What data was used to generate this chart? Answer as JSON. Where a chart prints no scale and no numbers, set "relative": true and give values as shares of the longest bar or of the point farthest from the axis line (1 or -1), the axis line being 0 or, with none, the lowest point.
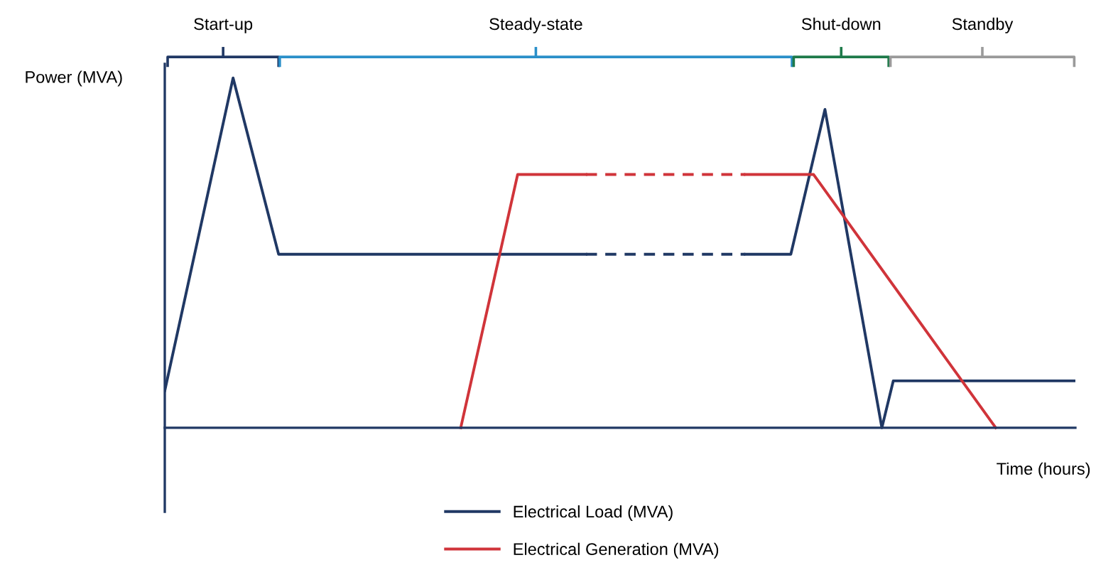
{
  "chart_data": {
    "type": "line",
    "relative": true,
    "xlabel": "Time (hours)",
    "ylabel": "Power (MVA)",
    "legend": "bottom",
    "marker": "none",
    "annotations": [
      "Start-up",
      "Steady-state",
      "Shut-down",
      "Standby"
    ],
    "categories": [
      null,
      null,
      null,
      null,
      null,
      null,
      null,
      null,
      null,
      null,
      null,
      null,
      null,
      null,
      null,
      null,
      null,
      null,
      null,
      null,
      null,
      null,
      null,
      null,
      null,
      null,
      null,
      null,
      null,
      null,
      null,
      null,
      null,
      null,
      null,
      null,
      null,
      null,
      null,
      null,
      null,
      null,
      null,
      null,
      null,
      null,
      null,
      null,
      null,
      null,
      null,
      null,
      null,
      null,
      null,
      null,
      null,
      null,
      null,
      null,
      null,
      null,
      null,
      null,
      null,
      null,
      null,
      null,
      null,
      null,
      null,
      null,
      null,
      null,
      null,
      null,
      null,
      null,
      null,
      null,
      null
    ],
    "series": [
      {
        "name": "Electrical Load (MVA)",
        "color": "#203864",
        "line_style": "solid",
        "values": [
          0.106,
          null,
          null,
          null,
          null,
          null,
          1,
          null,
          null,
          null,
          0.496,
          null,
          null,
          null,
          null,
          null,
          null,
          null,
          null,
          null,
          null,
          null,
          null,
          null,
          null,
          null,
          null,
          null,
          null,
          null,
          null,
          null,
          null,
          null,
          null,
          null,
          null,
          0.496,
          null,
          null,
          null,
          null,
          null,
          null,
          null,
          null,
          null,
          null,
          null,
          null,
          null,
          null,
          null,
          null,
          null,
          null,
          null,
          null,
          null,
          null,
          null,
          null,
          null,
          null,
          null,
          null,
          null,
          null,
          null,
          null,
          null,
          null,
          null,
          null,
          null,
          null,
          null,
          null,
          null,
          null,
          null
        ]
      },
      {
        "color": "#203864",
        "line_style": "dashed",
        "values": [
          null,
          null,
          null,
          null,
          null,
          null,
          null,
          null,
          null,
          null,
          null,
          null,
          null,
          null,
          null,
          null,
          null,
          null,
          null,
          null,
          null,
          null,
          null,
          null,
          null,
          null,
          null,
          null,
          null,
          null,
          null,
          null,
          null,
          null,
          null,
          null,
          null,
          0.496,
          null,
          null,
          null,
          null,
          null,
          null,
          null,
          null,
          null,
          null,
          null,
          null,
          null,
          0.496,
          null,
          null,
          null,
          null,
          null,
          null,
          null,
          null,
          null,
          null,
          null,
          null,
          null,
          null,
          null,
          null,
          null,
          null,
          null,
          null,
          null,
          null,
          null,
          null,
          null,
          null,
          null,
          null,
          null
        ]
      },
      {
        "color": "#203864",
        "line_style": "solid",
        "values": [
          null,
          null,
          null,
          null,
          null,
          null,
          null,
          null,
          null,
          null,
          null,
          null,
          null,
          null,
          null,
          null,
          null,
          null,
          null,
          null,
          null,
          null,
          null,
          null,
          null,
          null,
          null,
          null,
          null,
          null,
          null,
          null,
          null,
          null,
          null,
          null,
          null,
          null,
          null,
          null,
          null,
          null,
          null,
          null,
          null,
          null,
          null,
          null,
          null,
          null,
          null,
          0.496,
          null,
          null,
          null,
          0.496,
          null,
          null,
          0.91,
          null,
          null,
          null,
          null,
          0,
          0.134,
          null,
          null,
          null,
          null,
          null,
          null,
          null,
          null,
          null,
          null,
          null,
          null,
          null,
          null,
          null,
          0.134
        ]
      },
      {
        "name": "Electrical Generation (MVA)",
        "color": "#d0343a",
        "line_style": "solid",
        "values": [
          null,
          null,
          null,
          null,
          null,
          null,
          null,
          null,
          null,
          null,
          null,
          null,
          null,
          null,
          null,
          null,
          null,
          null,
          null,
          null,
          null,
          null,
          null,
          null,
          null,
          null,
          0,
          null,
          null,
          null,
          null,
          0.724,
          null,
          null,
          null,
          null,
          null,
          0.724,
          null,
          null,
          null,
          null,
          null,
          null,
          null,
          null,
          null,
          null,
          null,
          null,
          null,
          null,
          null,
          null,
          null,
          null,
          null,
          null,
          null,
          null,
          null,
          null,
          null,
          null,
          null,
          null,
          null,
          null,
          null,
          null,
          null,
          null,
          null,
          null,
          null,
          null,
          null,
          null,
          null,
          null,
          null
        ]
      },
      {
        "color": "#d0343a",
        "line_style": "dashed",
        "values": [
          null,
          null,
          null,
          null,
          null,
          null,
          null,
          null,
          null,
          null,
          null,
          null,
          null,
          null,
          null,
          null,
          null,
          null,
          null,
          null,
          null,
          null,
          null,
          null,
          null,
          null,
          null,
          null,
          null,
          null,
          null,
          null,
          null,
          null,
          null,
          null,
          null,
          0.724,
          null,
          null,
          null,
          null,
          null,
          null,
          null,
          null,
          null,
          null,
          null,
          null,
          null,
          0.724,
          null,
          null,
          null,
          null,
          null,
          null,
          null,
          null,
          null,
          null,
          null,
          null,
          null,
          null,
          null,
          null,
          null,
          null,
          null,
          null,
          null,
          null,
          null,
          null,
          null,
          null,
          null,
          null,
          null
        ]
      },
      {
        "color": "#d0343a",
        "line_style": "solid",
        "values": [
          null,
          null,
          null,
          null,
          null,
          null,
          null,
          null,
          null,
          null,
          null,
          null,
          null,
          null,
          null,
          null,
          null,
          null,
          null,
          null,
          null,
          null,
          null,
          null,
          null,
          null,
          null,
          null,
          null,
          null,
          null,
          null,
          null,
          null,
          null,
          null,
          null,
          null,
          null,
          null,
          null,
          null,
          null,
          null,
          null,
          null,
          null,
          null,
          null,
          null,
          null,
          0.724,
          null,
          null,
          null,
          null,
          null,
          0.724,
          null,
          null,
          null,
          null,
          null,
          null,
          null,
          null,
          null,
          null,
          null,
          null,
          null,
          null,
          null,
          0,
          null,
          null,
          null,
          null,
          null,
          null,
          null
        ]
      }
    ]
  }
}
